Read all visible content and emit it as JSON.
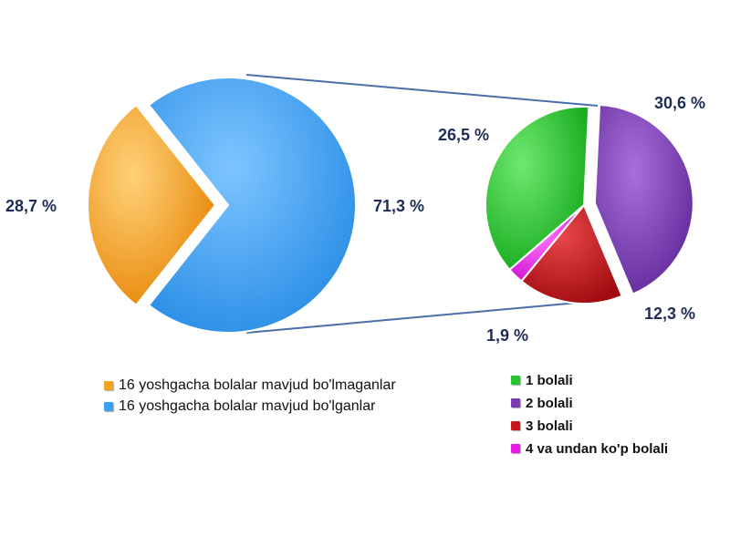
{
  "chart_data": [
    {
      "type": "pie",
      "slices": [
        {
          "label": "16 yoshgacha bolalar mavjud bo'lmaganlar",
          "value": 28.7,
          "display": "28,7 %",
          "color": "#f5a21f",
          "exploded": true
        },
        {
          "label": "16 yoshgacha bolalar mavjud bo'lganlar",
          "value": 71.3,
          "display": "71,3 %",
          "color": "#3aa0f2"
        }
      ],
      "legend_position": "bottom"
    },
    {
      "type": "pie",
      "slices": [
        {
          "label": "1 bolali",
          "value": 26.5,
          "display": "26,5 %",
          "color": "#22c52a"
        },
        {
          "label": "2 bolali",
          "value": 30.6,
          "display": "30,6 %",
          "color": "#7a3bb8",
          "exploded": true
        },
        {
          "label": "3 bolali",
          "value": 12.3,
          "display": "12,3 %",
          "color": "#c8161b"
        },
        {
          "label": "4 va undan ko'p bolali",
          "value": 1.9,
          "display": "1,9 %",
          "color": "#ea1bea"
        }
      ],
      "legend_position": "bottom-right"
    }
  ]
}
